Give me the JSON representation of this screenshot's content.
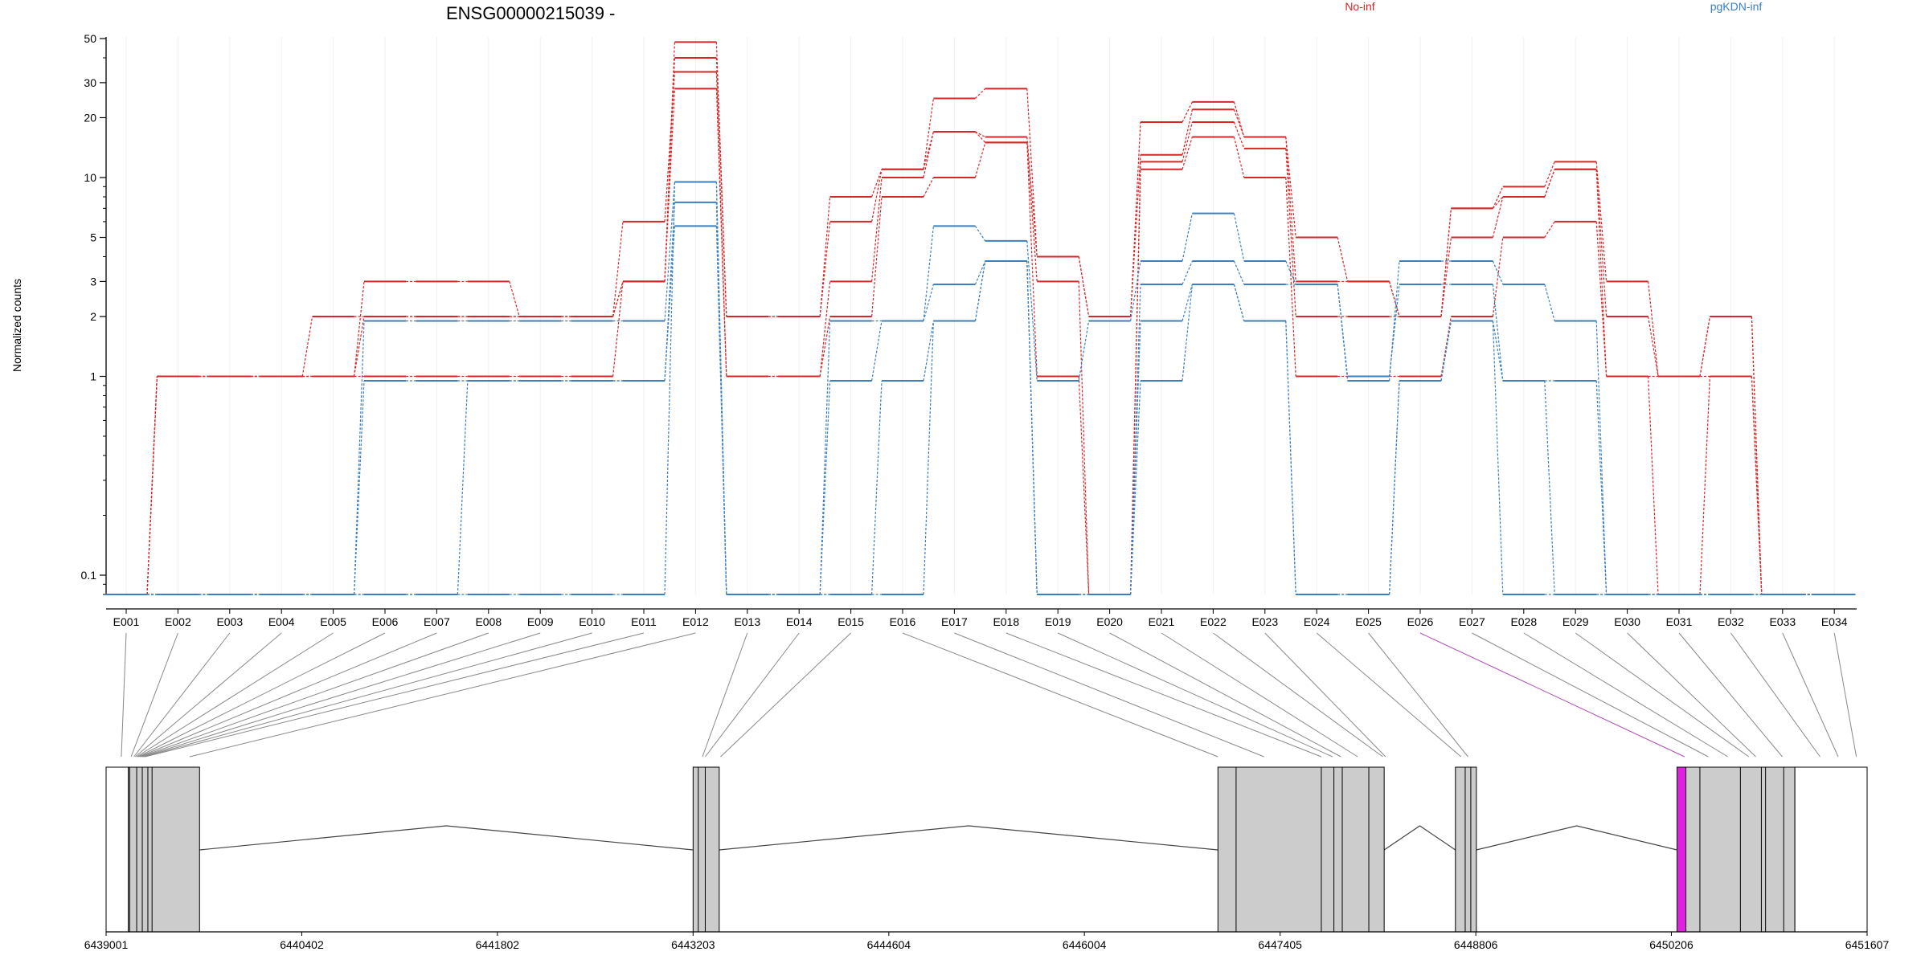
{
  "chart_data": {
    "type": "line",
    "title": "ENSG00000215039 -",
    "ylabel": "Normalized counts",
    "y_scale": "log",
    "ylim": [
      0.08,
      50
    ],
    "y_tick_labels": [
      "0.1",
      "1",
      "2",
      "3",
      "5",
      "10",
      "20",
      "30",
      "50"
    ],
    "y_tick_values": [
      0.1,
      1,
      2,
      3,
      5,
      10,
      20,
      30,
      50
    ],
    "grid": true,
    "legend_placement": "top",
    "colors": {
      "No-inf": "#d62728",
      "pgKDN-inf": "#3a7fc1",
      "highlight": "#e020e0",
      "exon_fill": "#cccccc"
    },
    "categories": [
      "E001",
      "E002",
      "E003",
      "E004",
      "E005",
      "E006",
      "E007",
      "E008",
      "E009",
      "E010",
      "E011",
      "E012",
      "E013",
      "E014",
      "E015",
      "E016",
      "E017",
      "E018",
      "E019",
      "E020",
      "E021",
      "E022",
      "E023",
      "E024",
      "E025",
      "E026",
      "E027",
      "E028",
      "E029",
      "E030",
      "E031",
      "E032",
      "E033",
      "E034"
    ],
    "floor_value": 0.08,
    "series": [
      {
        "name": "No-inf",
        "group": "No-inf",
        "values": [
          0.08,
          1,
          1,
          1,
          1,
          3,
          3,
          3,
          2,
          2,
          3,
          48,
          2,
          2,
          8,
          11,
          25,
          28,
          4,
          2,
          19,
          24,
          16,
          5,
          3,
          2,
          7,
          9,
          12,
          3,
          1,
          2,
          0.08,
          0.08
        ]
      },
      {
        "name": "No-inf",
        "group": "No-inf",
        "values": [
          0.08,
          1,
          1,
          1,
          2,
          2,
          2,
          2,
          2,
          2,
          3,
          40,
          2,
          2,
          6,
          11,
          17,
          16,
          4,
          2,
          13,
          22,
          16,
          3,
          3,
          2,
          7,
          8,
          11,
          2,
          1,
          2,
          0.08,
          0.08
        ]
      },
      {
        "name": "No-inf",
        "group": "No-inf",
        "values": [
          0.08,
          1,
          1,
          1,
          1,
          2,
          2,
          2,
          2,
          2,
          6,
          34,
          1,
          1,
          3,
          10,
          17,
          15,
          3,
          0.08,
          12,
          19,
          14,
          2,
          2,
          2,
          5,
          8,
          11,
          1,
          1,
          1,
          0.08,
          0.08
        ]
      },
      {
        "name": "No-inf",
        "group": "No-inf",
        "values": [
          0.08,
          1,
          1,
          1,
          1,
          1,
          1,
          1,
          1,
          1,
          3,
          28,
          1,
          1,
          2,
          8,
          10,
          15,
          1,
          0.08,
          11,
          16,
          10,
          1,
          1,
          1,
          2,
          5,
          6,
          1,
          0.08,
          1,
          0.08,
          0.08
        ]
      },
      {
        "name": "pgKDN-inf",
        "group": "pgKDN-inf",
        "values": [
          0.08,
          0.08,
          0.08,
          0.08,
          0.08,
          1.9,
          1.9,
          1.9,
          1.9,
          1.9,
          1.9,
          9.5,
          0.08,
          0.08,
          1.9,
          1.9,
          5.7,
          4.8,
          0.95,
          1.9,
          3.8,
          6.6,
          3.8,
          2.9,
          0.95,
          3.8,
          3.8,
          2.9,
          1.9,
          0.08,
          0.08,
          0.08,
          0.08,
          0.08
        ]
      },
      {
        "name": "pgKDN-inf",
        "group": "pgKDN-inf",
        "values": [
          0.08,
          0.08,
          0.08,
          0.08,
          0.08,
          0.95,
          0.95,
          0.95,
          0.95,
          0.95,
          0.95,
          7.5,
          0.08,
          0.08,
          0.95,
          1.9,
          2.9,
          3.8,
          0.08,
          0.08,
          2.9,
          3.8,
          2.9,
          2.9,
          1,
          2.9,
          2.9,
          0.95,
          0.95,
          0.08,
          0.08,
          0.08,
          0.08,
          0.08
        ]
      },
      {
        "name": "pgKDN-inf",
        "group": "pgKDN-inf",
        "values": [
          0.08,
          0.08,
          0.08,
          0.08,
          0.08,
          0.08,
          0.08,
          0.95,
          0.95,
          0.95,
          0.95,
          5.7,
          0.08,
          0.08,
          0.08,
          0.95,
          1.9,
          3.8,
          0.08,
          0.08,
          1.9,
          2.9,
          1.9,
          0.08,
          0.08,
          0.95,
          1.9,
          0.95,
          0.08,
          0.08,
          0.08,
          0.08,
          0.08,
          0.08
        ]
      },
      {
        "name": "pgKDN-inf",
        "group": "pgKDN-inf",
        "values": [
          0.08,
          0.08,
          0.08,
          0.08,
          0.08,
          0.08,
          0.08,
          0.08,
          0.08,
          0.08,
          0.08,
          9.5,
          0.08,
          0.08,
          0.08,
          0.08,
          1.9,
          3.8,
          0.08,
          0.08,
          0.95,
          2.9,
          1.9,
          0.08,
          0.08,
          0.95,
          1.9,
          0.08,
          0.08,
          0.08,
          0.08,
          0.08,
          0.08,
          0.08
        ]
      }
    ],
    "legend": [
      {
        "label": "No-inf",
        "color": "#d62728"
      },
      {
        "label": "pgKDN-inf",
        "color": "#3a7fc1"
      }
    ],
    "genome_axis": {
      "range": [
        6439001,
        6451607
      ],
      "tick_labels": [
        "6439001",
        "6440402",
        "6441802",
        "6443203",
        "6444604",
        "6446004",
        "6447405",
        "6448806",
        "6450206",
        "6451607"
      ],
      "tick_values": [
        6439001,
        6440402,
        6441802,
        6443203,
        6444604,
        6446004,
        6447405,
        6448806,
        6450206,
        6451607
      ]
    },
    "exon_blocks": [
      {
        "start": 6439001,
        "end": 6439160,
        "fill": "#ffffff"
      },
      {
        "start": 6439160,
        "end": 6439670,
        "fill": "#cccccc"
      },
      {
        "start": 6443203,
        "end": 6443390,
        "fill": "#cccccc"
      },
      {
        "start": 6446960,
        "end": 6448150,
        "fill": "#cccccc"
      },
      {
        "start": 6448660,
        "end": 6448810,
        "fill": "#cccccc"
      },
      {
        "start": 6450246,
        "end": 6450310,
        "fill": "#e020e0"
      },
      {
        "start": 6450310,
        "end": 6451090,
        "fill": "#cccccc"
      },
      {
        "start": 6451090,
        "end": 6451607,
        "fill": "#ffffff"
      }
    ],
    "exon_dividers": [
      6439170,
      6439220,
      6439260,
      6439300,
      6439330,
      6443240,
      6443290,
      6447090,
      6447700,
      6447790,
      6447850,
      6448040,
      6448730,
      6448770,
      6450410,
      6450700,
      6450850,
      6450880,
      6451010
    ],
    "introns": [
      {
        "start": 6439670,
        "end": 6443203
      },
      {
        "start": 6443390,
        "end": 6446960
      },
      {
        "start": 6448150,
        "end": 6448660
      },
      {
        "start": 6448810,
        "end": 6450246
      }
    ],
    "exon_genomic_positions": [
      6439110,
      6439180,
      6439200,
      6439210,
      6439220,
      6439230,
      6439240,
      6439250,
      6439260,
      6439270,
      6439280,
      6439600,
      6443270,
      6443290,
      6443400,
      6446960,
      6447290,
      6447700,
      6447780,
      6447840,
      6447960,
      6448140,
      6448160,
      6448700,
      6448750,
      6450300,
      6450470,
      6450610,
      6450760,
      6450810,
      6451000,
      6451270,
      6451400,
      6451530
    ],
    "highlighted_exon": "E026"
  }
}
